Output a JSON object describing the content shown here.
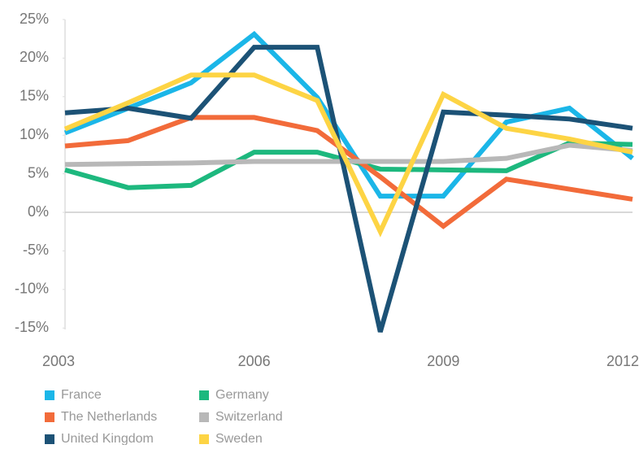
{
  "chart_data": {
    "type": "line",
    "x": [
      2003,
      2004,
      2005,
      2006,
      2007,
      2008,
      2009,
      2010,
      2011,
      2012
    ],
    "xlim": [
      2003,
      2012
    ],
    "xticks": [
      2003,
      2006,
      2009,
      2012
    ],
    "ylim": [
      -15.5,
      25
    ],
    "yticks": [
      {
        "value": -15,
        "label": "-15%"
      },
      {
        "value": -10,
        "label": "-10%"
      },
      {
        "value": -5,
        "label": "-5%"
      },
      {
        "value": 0,
        "label": "0%"
      },
      {
        "value": 5,
        "label": "5%"
      },
      {
        "value": 10,
        "label": "10%"
      },
      {
        "value": 15,
        "label": "15%"
      },
      {
        "value": 20,
        "label": "20%"
      },
      {
        "value": 25,
        "label": "25%"
      }
    ],
    "grid": false,
    "series": [
      {
        "name": "France",
        "color": "#1bb6e8",
        "values": [
          10.3,
          13.5,
          16.8,
          23.1,
          14.9,
          2.1,
          2.1,
          11.7,
          13.5,
          7.0
        ]
      },
      {
        "name": "Germany",
        "color": "#1db87e",
        "values": [
          5.5,
          3.2,
          3.5,
          7.8,
          7.8,
          5.6,
          5.5,
          5.4,
          9.0,
          8.8
        ]
      },
      {
        "name": "The Netherlands",
        "color": "#f26b3a",
        "values": [
          8.6,
          9.3,
          12.3,
          12.3,
          10.6,
          4.6,
          -1.8,
          4.3,
          3.0,
          1.7
        ]
      },
      {
        "name": "Switzerland",
        "color": "#b8b8b8",
        "values": [
          6.2,
          6.3,
          6.4,
          6.6,
          6.6,
          6.6,
          6.6,
          7.0,
          8.7,
          8.0
        ]
      },
      {
        "name": "United Kingdom",
        "color": "#1c5276",
        "values": [
          12.9,
          13.5,
          12.2,
          21.4,
          21.4,
          -15.5,
          13.0,
          12.6,
          12.1,
          10.9
        ]
      },
      {
        "name": "Sweden",
        "color": "#fdd444",
        "values": [
          10.8,
          14.2,
          17.8,
          17.8,
          14.5,
          -2.5,
          15.3,
          10.9,
          9.5,
          7.8
        ]
      }
    ]
  }
}
